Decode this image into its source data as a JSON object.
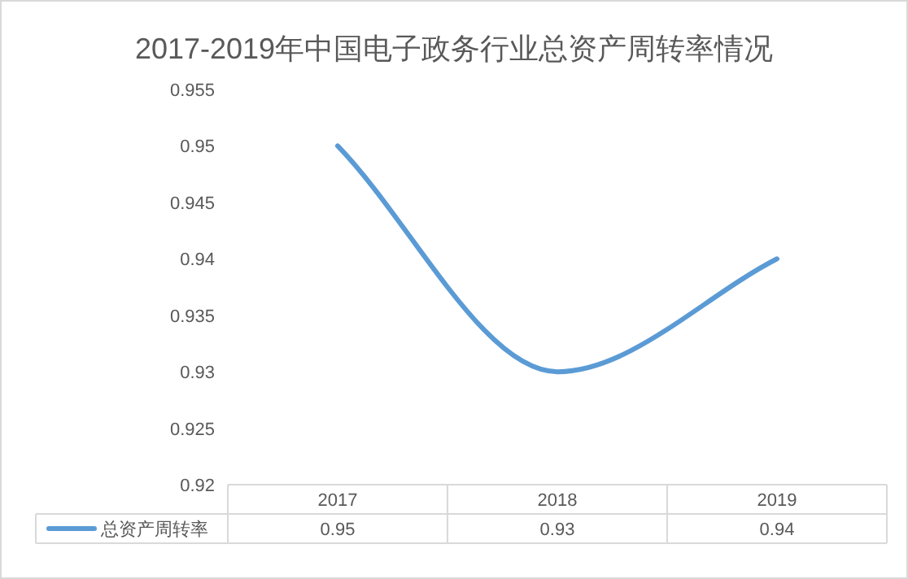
{
  "chart_data": {
    "type": "line",
    "title": "2017-2019年中国电子政务行业总资产周转率情况",
    "categories": [
      "2017",
      "2018",
      "2019"
    ],
    "series": [
      {
        "name": "总资产周转率",
        "color": "#5b9bd5",
        "values": [
          0.95,
          0.93,
          0.94
        ]
      }
    ],
    "ylim": [
      0.92,
      0.955
    ],
    "yticks": [
      0.92,
      0.925,
      0.93,
      0.935,
      0.94,
      0.945,
      0.95,
      0.955
    ],
    "data_labels": true,
    "legend": "bottom"
  }
}
